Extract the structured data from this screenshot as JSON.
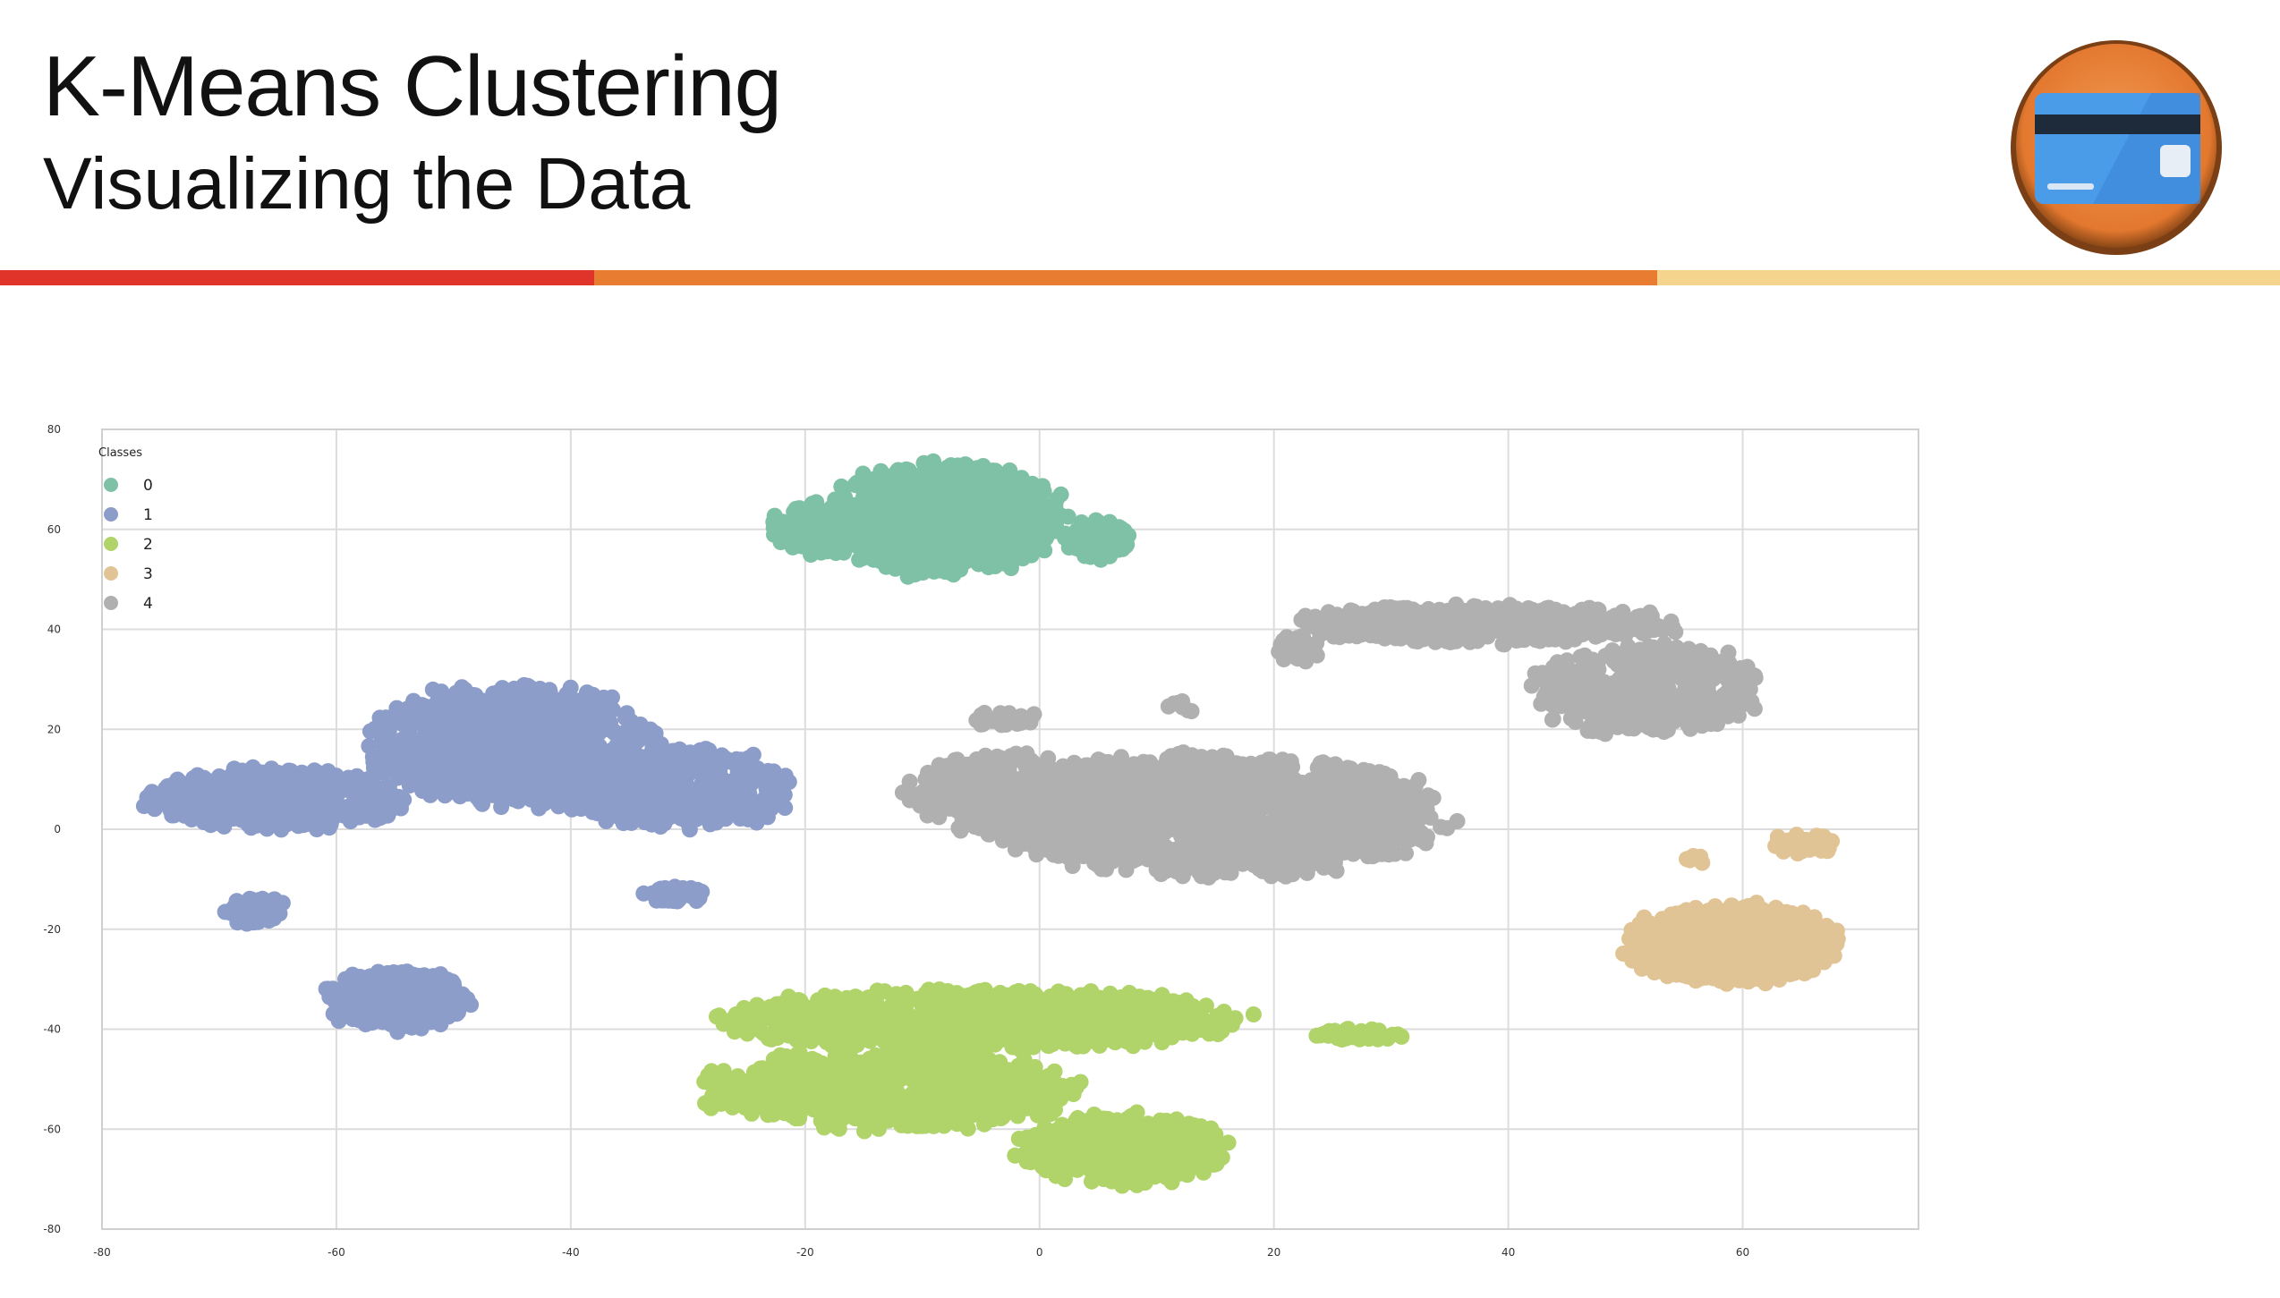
{
  "slide": {
    "title": "K-Means Clustering",
    "subtitle": "Visualizing the Data",
    "rule_colors": [
      "#e0342a",
      "#e87c30",
      "#f5d58e"
    ],
    "logo_icon": "credit-card-icon",
    "logo_colors": {
      "ring": "#e9873f",
      "card": "#4a9be8",
      "stripe": "#1e2b3a"
    }
  },
  "chart_data": {
    "type": "scatter",
    "title": "",
    "xlabel": "",
    "ylabel": "",
    "xlim": [
      -80,
      75
    ],
    "ylim": [
      -80,
      80
    ],
    "x_ticks": [
      -80,
      -60,
      -40,
      -20,
      0,
      20,
      40,
      60
    ],
    "y_ticks": [
      -80,
      -60,
      -40,
      -20,
      0,
      20,
      40,
      60,
      80
    ],
    "x_tick_labels": [
      "-80",
      "-60",
      "-40",
      "-20",
      "0",
      "20",
      "40",
      "60"
    ],
    "y_tick_labels": [
      "-80",
      "-60",
      "-40",
      "-20",
      "0",
      "20",
      "40",
      "60",
      "80"
    ],
    "grid": true,
    "legend_title": "Classes",
    "legend_position": "top-left",
    "series": [
      {
        "name": "0",
        "color": "#7fc1a6",
        "blobs": [
          {
            "cx": -8,
            "cy": 62,
            "rx": 10,
            "ry": 11,
            "n": 900
          },
          {
            "cx": -19,
            "cy": 60,
            "rx": 4,
            "ry": 5,
            "n": 160
          },
          {
            "cx": 5,
            "cy": 58,
            "rx": 3,
            "ry": 4,
            "n": 90
          }
        ]
      },
      {
        "name": "1",
        "color": "#8d9dc9",
        "blobs": [
          {
            "cx": -45,
            "cy": 17,
            "rx": 12,
            "ry": 12,
            "n": 900
          },
          {
            "cx": -65,
            "cy": 6,
            "rx": 11,
            "ry": 6,
            "n": 500
          },
          {
            "cx": -31,
            "cy": 8,
            "rx": 10,
            "ry": 8,
            "n": 400
          },
          {
            "cx": -55,
            "cy": -34,
            "rx": 6,
            "ry": 6,
            "n": 350
          },
          {
            "cx": -67,
            "cy": -16,
            "rx": 2.5,
            "ry": 3,
            "n": 40
          },
          {
            "cx": -31,
            "cy": -13,
            "rx": 3,
            "ry": 1.5,
            "n": 40
          }
        ]
      },
      {
        "name": "2",
        "color": "#b0d46a",
        "blobs": [
          {
            "cx": -5,
            "cy": -38,
            "rx": 22,
            "ry": 6,
            "n": 900
          },
          {
            "cx": -13,
            "cy": -52,
            "rx": 16,
            "ry": 8,
            "n": 700
          },
          {
            "cx": 7,
            "cy": -64,
            "rx": 9,
            "ry": 7,
            "n": 450
          },
          {
            "cx": 27,
            "cy": -41,
            "rx": 4,
            "ry": 1.2,
            "n": 35
          }
        ]
      },
      {
        "name": "3",
        "color": "#e1c495",
        "blobs": [
          {
            "cx": 59,
            "cy": -23,
            "rx": 9,
            "ry": 8,
            "n": 650
          },
          {
            "cx": 65,
            "cy": -3,
            "rx": 3,
            "ry": 2,
            "n": 40
          },
          {
            "cx": 56,
            "cy": -6,
            "rx": 1,
            "ry": 1,
            "n": 6
          }
        ]
      },
      {
        "name": "4",
        "color": "#b0b0b0",
        "blobs": [
          {
            "cx": 15,
            "cy": 3,
            "rx": 19,
            "ry": 12,
            "n": 1500
          },
          {
            "cx": -3,
            "cy": 7,
            "rx": 8,
            "ry": 8,
            "n": 350
          },
          {
            "cx": 38,
            "cy": 41,
            "rx": 16,
            "ry": 4,
            "n": 450
          },
          {
            "cx": 52,
            "cy": 28,
            "rx": 10,
            "ry": 9,
            "n": 450
          },
          {
            "cx": 22,
            "cy": 36,
            "rx": 2,
            "ry": 3,
            "n": 30
          },
          {
            "cx": -3,
            "cy": 22,
            "rx": 3,
            "ry": 1.5,
            "n": 25
          },
          {
            "cx": 12,
            "cy": 24,
            "rx": 1,
            "ry": 2,
            "n": 10
          }
        ]
      }
    ]
  }
}
